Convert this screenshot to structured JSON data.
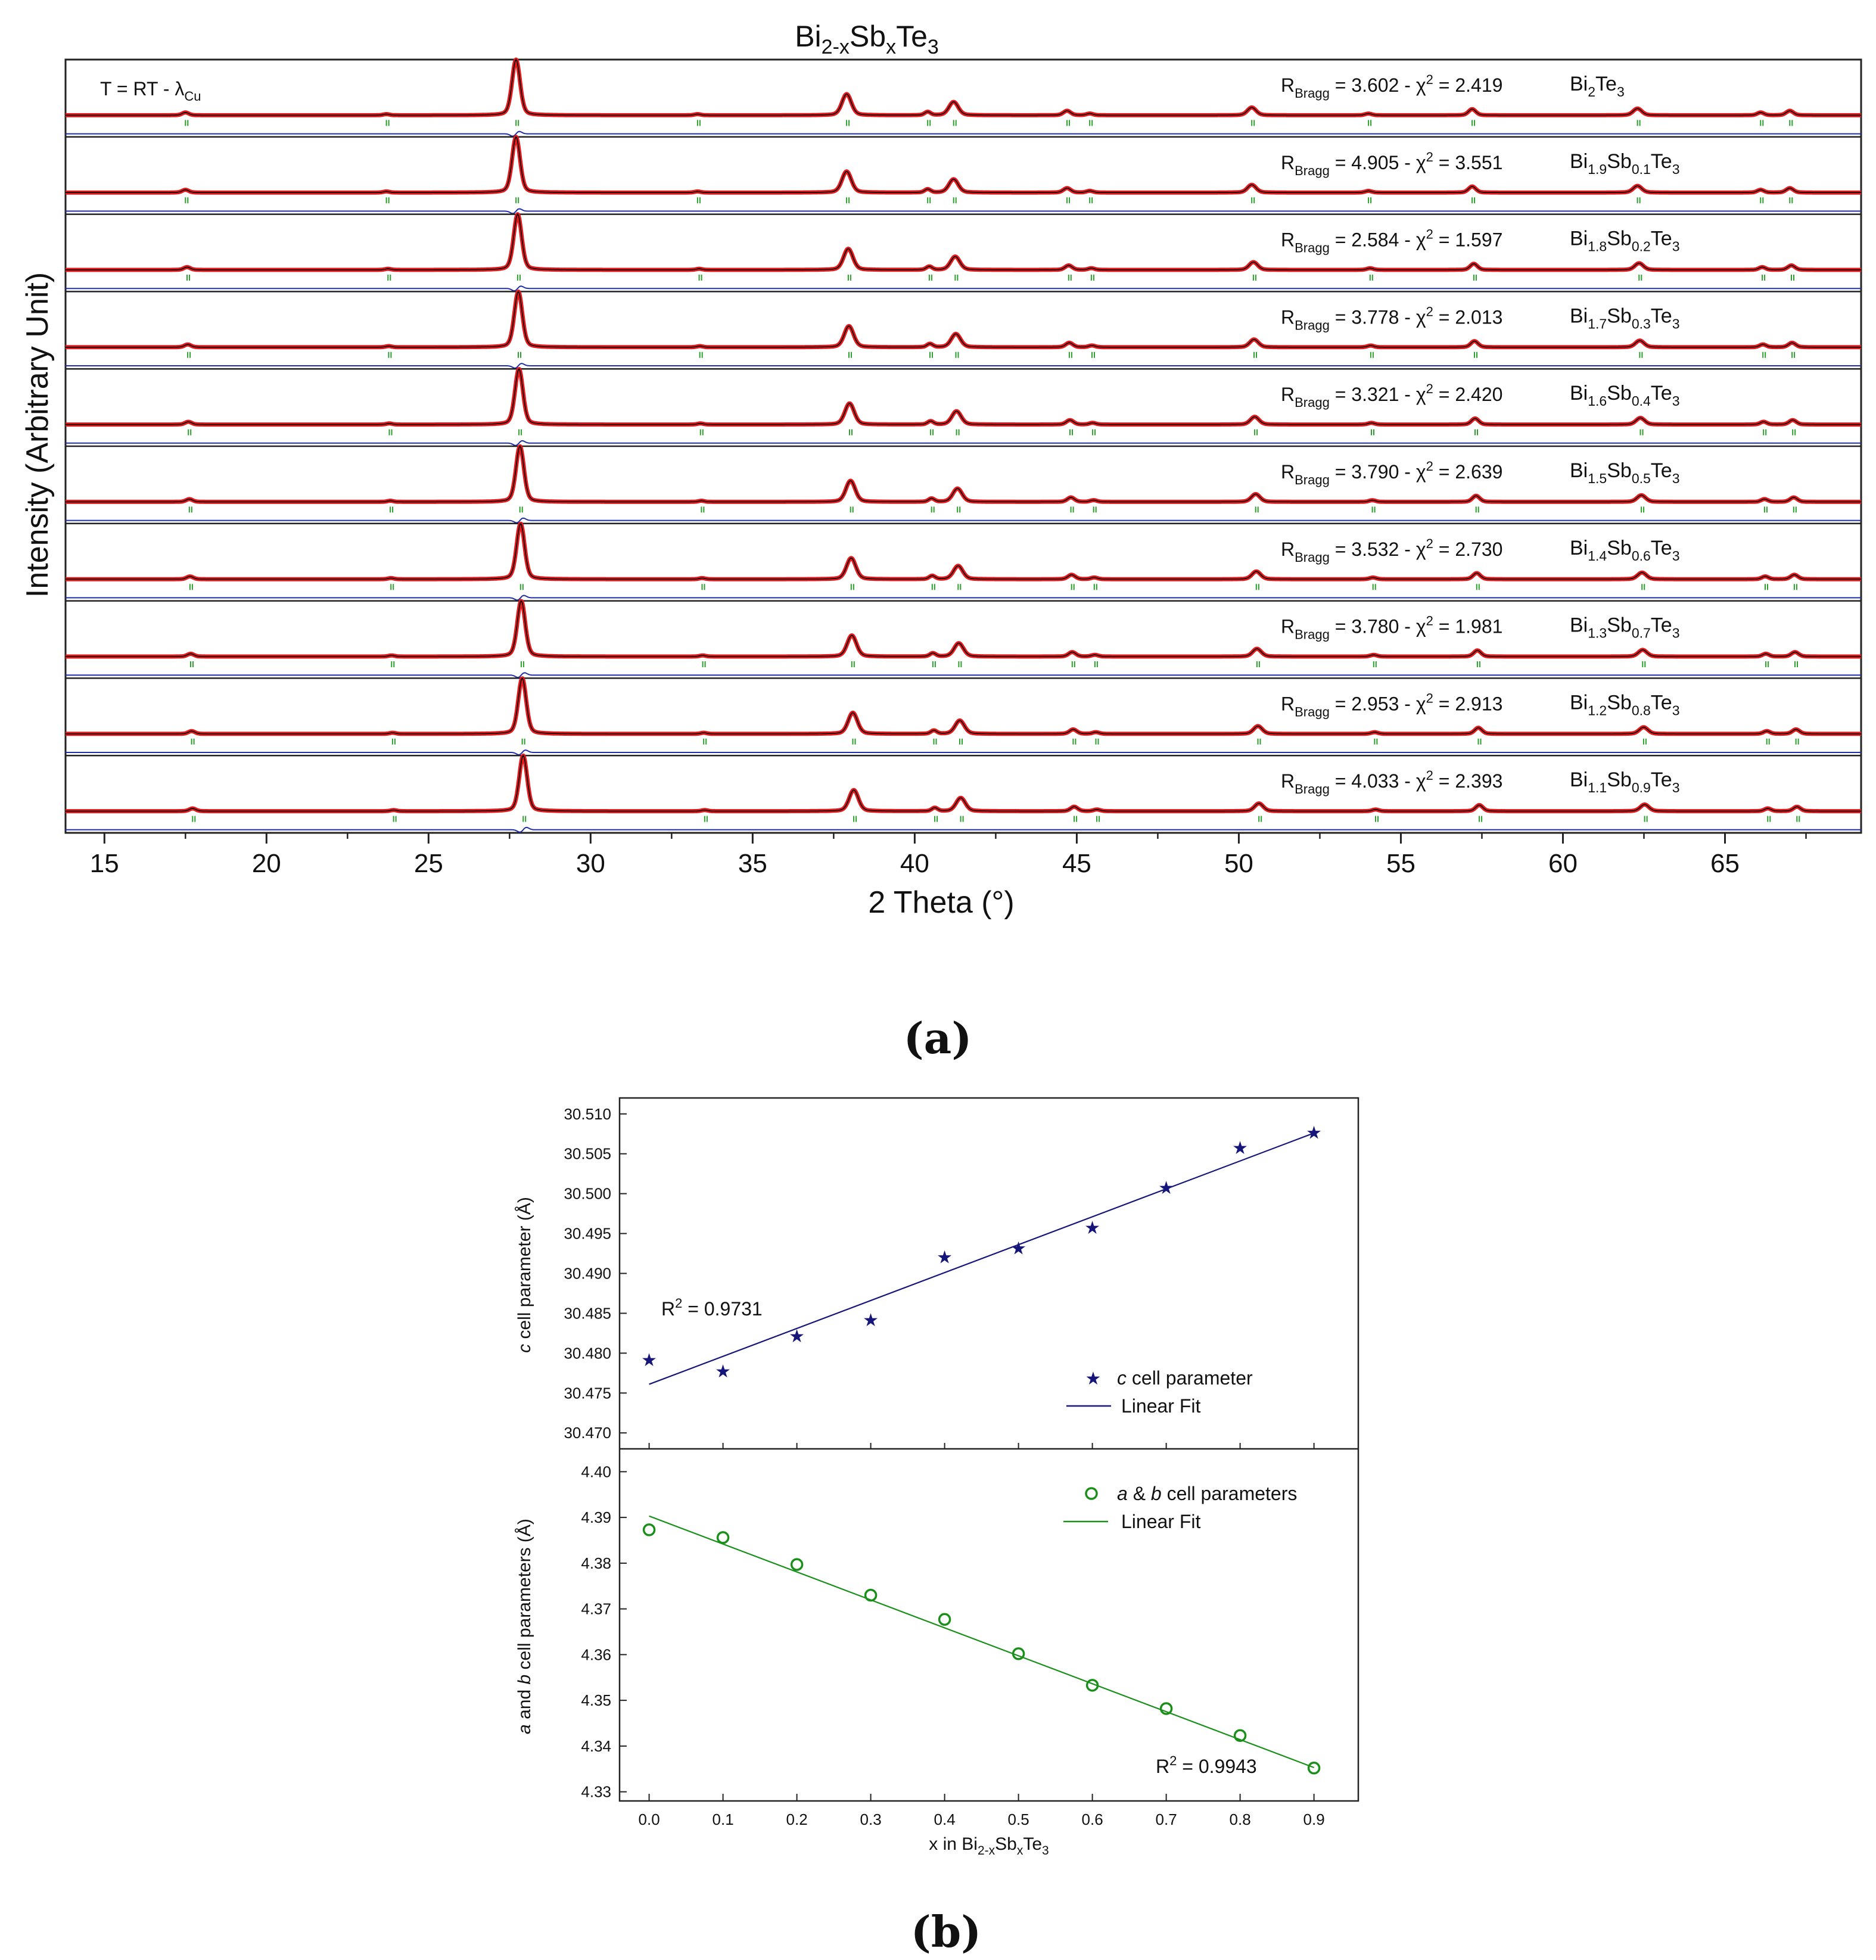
{
  "panel_labels": {
    "a": "(a)",
    "b": "(b)"
  },
  "chart_data": [
    {
      "type": "line",
      "panel": "a",
      "title": "Bi2-xSbxTe3",
      "title_parts": {
        "base1": "Bi",
        "sub1": "2-x",
        "base2": "Sb",
        "sub2": "x",
        "base3": "Te",
        "sub3": "3"
      },
      "condition_parts": {
        "text": "T = RT - ",
        "lambda": "λ",
        "sub": "Cu"
      },
      "xlabel": "2 Theta (°)",
      "ylabel": "Intensity (Arbitrary Unit)",
      "xlim": [
        13.8,
        69.2
      ],
      "xticks": [
        "15",
        "20",
        "25",
        "30",
        "35",
        "40",
        "45",
        "50",
        "55",
        "60",
        "65"
      ],
      "xtick_values": [
        15,
        20,
        25,
        30,
        35,
        40,
        45,
        50,
        55,
        60,
        65
      ],
      "stats_parts": {
        "r": "R",
        "rsub": "Bragg",
        "eq": " = ",
        "sep": " - ",
        "chi": "χ",
        "sup": "2"
      },
      "peaks_2theta": [
        17.5,
        23.7,
        27.7,
        33.3,
        37.9,
        40.4,
        41.2,
        44.7,
        45.4,
        50.4,
        54.0,
        57.2,
        62.3,
        66.1,
        67.0
      ],
      "peak_heights": [
        0.05,
        0.02,
        1.0,
        0.02,
        0.38,
        0.06,
        0.24,
        0.08,
        0.03,
        0.14,
        0.03,
        0.11,
        0.12,
        0.05,
        0.08
      ],
      "series": [
        {
          "name": "Bi2Te3",
          "label_parts": [
            "Bi",
            "2",
            "",
            "",
            "Te",
            "3"
          ],
          "rbragg": "3.602",
          "chi2": "2.419",
          "shift": 0.0
        },
        {
          "name": "Bi1.9Sb0.1Te3",
          "label_parts": [
            "Bi",
            "1.9",
            "Sb",
            "0.1",
            "Te",
            "3"
          ],
          "rbragg": "4.905",
          "chi2": "3.551",
          "shift": 0.0
        },
        {
          "name": "Bi1.8Sb0.2Te3",
          "label_parts": [
            "Bi",
            "1.8",
            "Sb",
            "0.2",
            "Te",
            "3"
          ],
          "rbragg": "2.584",
          "chi2": "1.597",
          "shift": 0.05
        },
        {
          "name": "Bi1.7Sb0.3Te3",
          "label_parts": [
            "Bi",
            "1.7",
            "Sb",
            "0.3",
            "Te",
            "3"
          ],
          "rbragg": "3.778",
          "chi2": "2.013",
          "shift": 0.07
        },
        {
          "name": "Bi1.6Sb0.4Te3",
          "label_parts": [
            "Bi",
            "1.6",
            "Sb",
            "0.4",
            "Te",
            "3"
          ],
          "rbragg": "3.321",
          "chi2": "2.420",
          "shift": 0.09
        },
        {
          "name": "Bi1.5Sb0.5Te3",
          "label_parts": [
            "Bi",
            "1.5",
            "Sb",
            "0.5",
            "Te",
            "3"
          ],
          "rbragg": "3.790",
          "chi2": "2.639",
          "shift": 0.12
        },
        {
          "name": "Bi1.4Sb0.6Te3",
          "label_parts": [
            "Bi",
            "1.4",
            "Sb",
            "0.6",
            "Te",
            "3"
          ],
          "rbragg": "3.532",
          "chi2": "2.730",
          "shift": 0.14
        },
        {
          "name": "Bi1.3Sb0.7Te3",
          "label_parts": [
            "Bi",
            "1.3",
            "Sb",
            "0.7",
            "Te",
            "3"
          ],
          "rbragg": "3.780",
          "chi2": "1.981",
          "shift": 0.16
        },
        {
          "name": "Bi1.2Sb0.8Te3",
          "label_parts": [
            "Bi",
            "1.2",
            "Sb",
            "0.8",
            "Te",
            "3"
          ],
          "rbragg": "2.953",
          "chi2": "2.913",
          "shift": 0.19
        },
        {
          "name": "Bi1.1Sb0.9Te3",
          "label_parts": [
            "Bi",
            "1.1",
            "Sb",
            "0.9",
            "Te",
            "3"
          ],
          "rbragg": "4.033",
          "chi2": "2.393",
          "shift": 0.22
        }
      ],
      "colors": {
        "observed": "#e31a1c",
        "calculated": "#000000",
        "difference": "#1f2fa8",
        "bragg_ticks": "#2ca02c"
      }
    },
    {
      "type": "scatter",
      "panel": "b-top",
      "ylabel_parts": {
        "italic": "c",
        "rest": " cell parameter (Å)"
      },
      "x": [
        0.0,
        0.1,
        0.2,
        0.3,
        0.4,
        0.5,
        0.6,
        0.7,
        0.8,
        0.9
      ],
      "values": [
        30.4792,
        30.4778,
        30.4822,
        30.4842,
        30.4921,
        30.4932,
        30.4958,
        30.5008,
        30.5058,
        30.5077
      ],
      "fit": {
        "x": [
          0.0,
          0.9
        ],
        "y": [
          30.4761,
          30.5076
        ]
      },
      "ylim": [
        30.468,
        30.512
      ],
      "yticks": [
        "30.470",
        "30.475",
        "30.480",
        "30.485",
        "30.490",
        "30.495",
        "30.500",
        "30.505",
        "30.510"
      ],
      "ytick_values": [
        30.47,
        30.475,
        30.48,
        30.485,
        30.49,
        30.495,
        30.5,
        30.505,
        30.51
      ],
      "r2_parts": {
        "r": "R",
        "sup": "2",
        "val": " = 0.9731"
      },
      "legend": {
        "marker_label_italic": "c",
        "marker_label_rest": " cell parameter",
        "fit_label": "Linear Fit"
      },
      "color": "#16167a"
    },
    {
      "type": "scatter",
      "panel": "b-bottom",
      "ylabel_parts": {
        "i1": "a",
        "m": " and ",
        "i2": "b",
        "rest": " cell parameters (Å)"
      },
      "xlabel_parts": {
        "text": "x in Bi",
        "sub1": "2-x",
        "base2": "Sb",
        "sub2": "x",
        "base3": "Te",
        "sub3": "3"
      },
      "x": [
        0.0,
        0.1,
        0.2,
        0.3,
        0.4,
        0.5,
        0.6,
        0.7,
        0.8,
        0.9
      ],
      "values": [
        4.3873,
        4.3856,
        4.3797,
        4.373,
        4.3677,
        4.3602,
        4.3533,
        4.3482,
        4.3423,
        4.3352
      ],
      "fit": {
        "x": [
          0.0,
          0.9
        ],
        "y": [
          4.3903,
          4.3353
        ]
      },
      "ylim": [
        4.328,
        4.405
      ],
      "yticks": [
        "4.33",
        "4.34",
        "4.35",
        "4.36",
        "4.37",
        "4.38",
        "4.39",
        "4.40"
      ],
      "ytick_values": [
        4.33,
        4.34,
        4.35,
        4.36,
        4.37,
        4.38,
        4.39,
        4.4
      ],
      "xticks": [
        "0.0",
        "0.1",
        "0.2",
        "0.3",
        "0.4",
        "0.5",
        "0.6",
        "0.7",
        "0.8",
        "0.9"
      ],
      "xlim": [
        -0.04,
        0.96
      ],
      "r2_parts": {
        "r": "R",
        "sup": "2",
        "val": " = 0.9943"
      },
      "legend": {
        "marker_label_i1": "a",
        "marker_label_m": " & ",
        "marker_label_i2": "b",
        "marker_label_rest": " cell parameters",
        "fit_label": "Linear Fit"
      },
      "color": "#1a8f1a"
    }
  ]
}
